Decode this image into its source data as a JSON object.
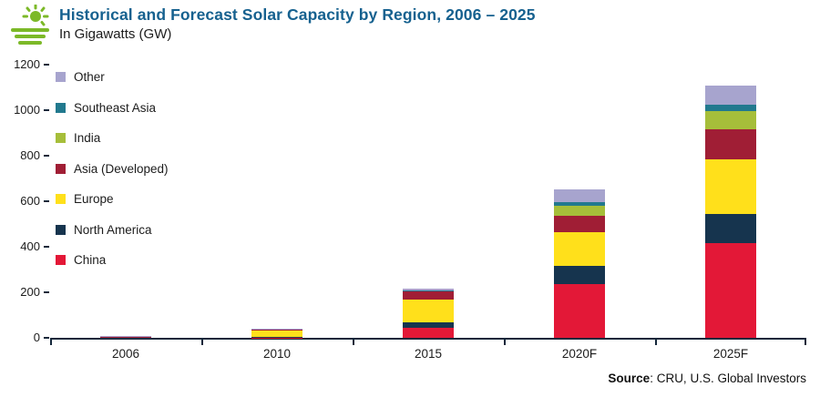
{
  "header": {
    "title": "Historical and Forecast Solar Capacity by Region, 2006 – 2025",
    "subtitle": "In Gigawatts (GW)"
  },
  "footer": {
    "source_label": "Source",
    "source_rest": ": CRU, U.S. Global Investors"
  },
  "colors": {
    "title_blue": "#16618F",
    "logo_green": "#7CB928",
    "axis": "#14273A"
  },
  "chart_data": {
    "type": "bar",
    "stacked": true,
    "title": "Historical and Forecast Solar Capacity by Region, 2006 – 2025",
    "ylabel": "In Gigawatts (GW)",
    "xlabel": "",
    "ylim": [
      0,
      1200
    ],
    "yticks": [
      0,
      200,
      400,
      600,
      800,
      1000,
      1200
    ],
    "grid": false,
    "legend_position": "top-left-inside",
    "categories": [
      "2006",
      "2010",
      "2015",
      "2020F",
      "2025F"
    ],
    "series": [
      {
        "name": "China",
        "color": "#E31837",
        "values": [
          0.2,
          1,
          43,
          235,
          415
        ]
      },
      {
        "name": "North America",
        "color": "#16344E",
        "values": [
          0.7,
          3,
          27,
          80,
          130
        ]
      },
      {
        "name": "Europe",
        "color": "#FFE01B",
        "values": [
          3,
          29,
          97,
          150,
          240
        ]
      },
      {
        "name": "Asia (Developed)",
        "color": "#A01E35",
        "values": [
          2,
          4,
          36,
          72,
          130
        ]
      },
      {
        "name": "India",
        "color": "#A6BE3A",
        "values": [
          0,
          0.2,
          5,
          45,
          80
        ]
      },
      {
        "name": "Southeast Asia",
        "color": "#22798E",
        "values": [
          0,
          0.2,
          2,
          15,
          28
        ]
      },
      {
        "name": "Other",
        "color": "#A7A4CE",
        "values": [
          0.3,
          2,
          8,
          55,
          85
        ]
      }
    ],
    "legend_order_top_to_bottom": [
      "Other",
      "Southeast Asia",
      "India",
      "Asia (Developed)",
      "Europe",
      "North America",
      "China"
    ]
  }
}
